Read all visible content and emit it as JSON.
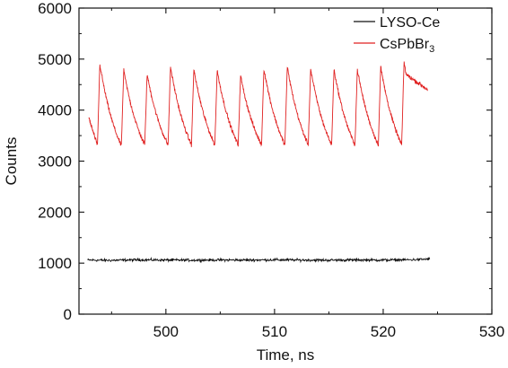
{
  "chart_data": {
    "type": "line",
    "title": "",
    "xlabel": "Time, ns",
    "ylabel": "Counts",
    "xlim": [
      492,
      530
    ],
    "ylim": [
      0,
      6000
    ],
    "xticks": [
      500,
      510,
      520,
      530
    ],
    "yticks": [
      0,
      1000,
      2000,
      3000,
      4000,
      5000,
      6000
    ],
    "grid": false,
    "legend_position": "top-right",
    "series": [
      {
        "name": "LYSO-Ce",
        "color": "#111111",
        "x": [
          492.8,
          495.0,
          497.5,
          500.0,
          502.5,
          505.0,
          507.5,
          510.0,
          512.5,
          515.0,
          517.5,
          520.0,
          522.5,
          524.3
        ],
        "y": [
          1060,
          1055,
          1065,
          1060,
          1058,
          1062,
          1060,
          1065,
          1060,
          1058,
          1062,
          1060,
          1065,
          1080
        ],
        "noise": 25
      },
      {
        "name": "CsPbBr",
        "name_sub": "3",
        "color": "#e02020",
        "pulse_starts": [
          493.7,
          495.9,
          498.05,
          500.2,
          502.35,
          504.5,
          506.65,
          508.8,
          510.95,
          513.1,
          515.25,
          517.4,
          519.55,
          521.7
        ],
        "peaks": [
          4900,
          4780,
          4700,
          4850,
          4800,
          4780,
          4680,
          4810,
          4850,
          4810,
          4800,
          4800,
          4850,
          4950
        ],
        "baseline": 3300,
        "first_x": 492.9,
        "first_y": 3850,
        "last_x": 524.1,
        "last_y": 4400,
        "noise": 40
      }
    ]
  }
}
